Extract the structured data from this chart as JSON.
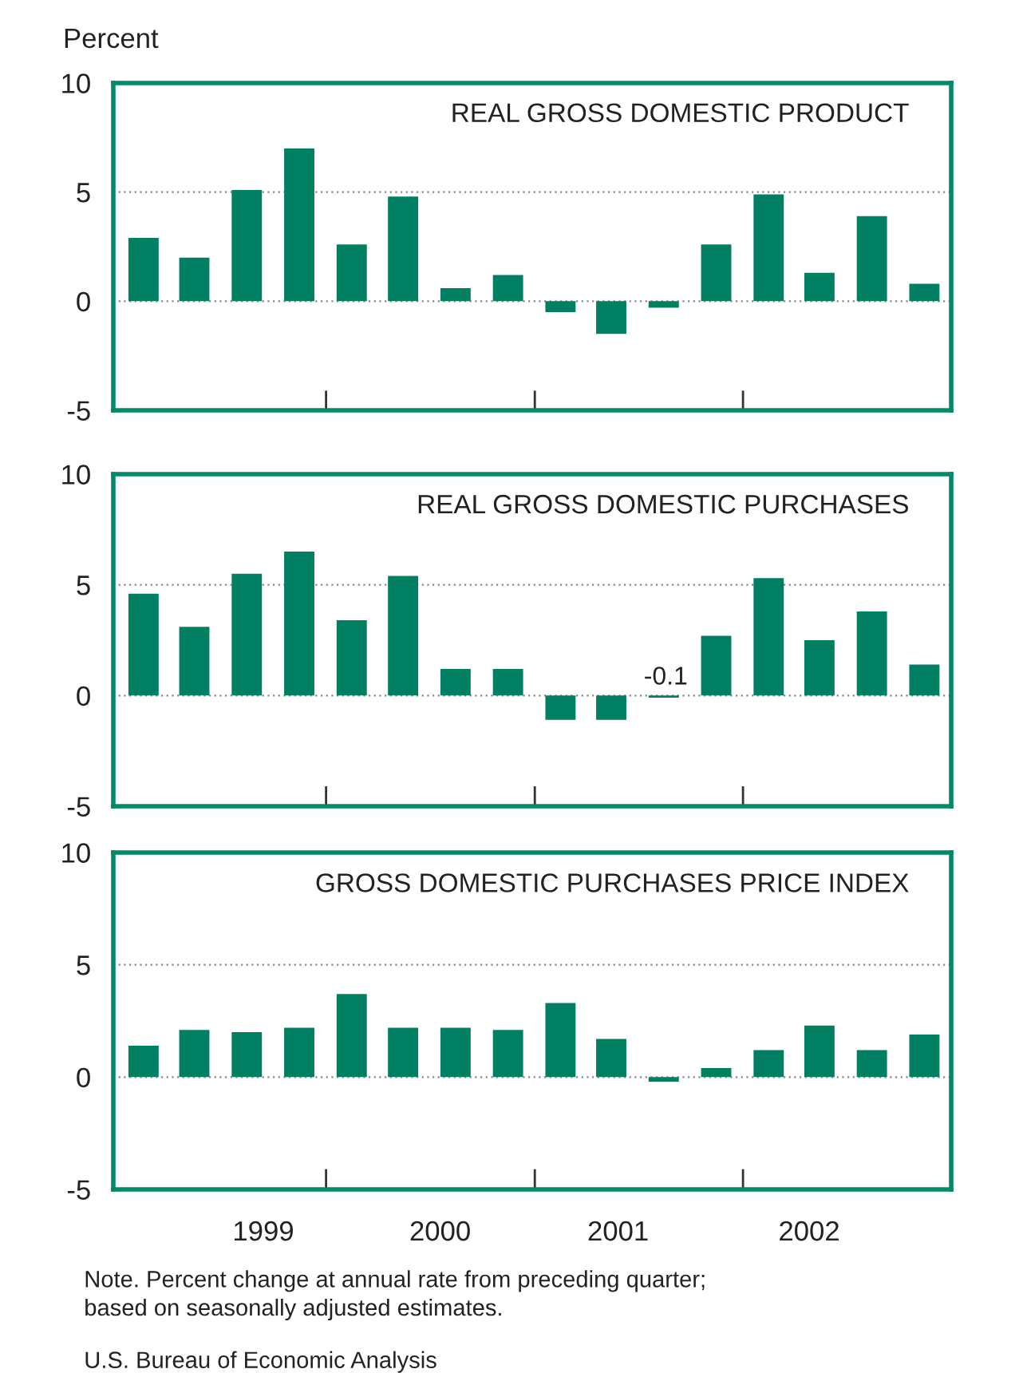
{
  "chart_data": [
    {
      "type": "bar",
      "title": "REAL GROSS DOMESTIC PRODUCT",
      "ylabel": "Percent",
      "color": "#007f62",
      "x": [
        "1999-02-15",
        "1999-05-15",
        "1999-08-15",
        "1999-11-15",
        "2000-02-15",
        "2000-05-15",
        "2000-08-15",
        "2000-11-15",
        "2001-02-15",
        "2001-05-15",
        "2001-08-15",
        "2001-11-15",
        "2002-02-15",
        "2002-05-15",
        "2002-08-15",
        "2002-11-15"
      ],
      "values": [
        2.9,
        2.0,
        5.1,
        7.0,
        2.6,
        4.8,
        0.6,
        1.2,
        -0.5,
        -1.5,
        -0.3,
        2.6,
        4.9,
        1.3,
        3.9,
        0.8
      ],
      "xlim": [
        "1998-12-24",
        "2003-01-01"
      ],
      "xticks": [
        {
          "value": "2000-01-01",
          "label": null
        },
        {
          "value": "2001-01-01",
          "label": null
        },
        {
          "value": "2002-01-01",
          "label": null
        }
      ],
      "ylim": [
        -5,
        10
      ],
      "yticks": [
        -5,
        0,
        5,
        10
      ],
      "grid": "y",
      "tick_labels": "y"
    },
    {
      "type": "bar",
      "title": "REAL GROSS DOMESTIC PURCHASES",
      "color": "#007f62",
      "x": [
        "1999-02-15",
        "1999-05-15",
        "1999-08-15",
        "1999-11-15",
        "2000-02-15",
        "2000-05-15",
        "2000-08-15",
        "2000-11-15",
        "2001-02-15",
        "2001-05-15",
        "2001-08-15",
        "2001-11-15",
        "2002-02-15",
        "2002-05-15",
        "2002-08-15",
        "2002-11-15"
      ],
      "values": [
        4.6,
        3.1,
        5.5,
        6.5,
        3.4,
        5.4,
        1.2,
        1.2,
        -1.1,
        -1.1,
        -0.1,
        2.7,
        5.3,
        2.5,
        3.8,
        1.4
      ],
      "annotations": [
        {
          "text": "-0.1",
          "x": "2001-08-15",
          "y": -0.1
        }
      ],
      "xlim": [
        "1998-12-24",
        "2003-01-01"
      ],
      "xticks": [
        {
          "value": "2000-01-01",
          "label": null
        },
        {
          "value": "2001-01-01",
          "label": null
        },
        {
          "value": "2002-01-01",
          "label": null
        }
      ],
      "ylim": [
        -5,
        10
      ],
      "yticks": [
        -5,
        0,
        5,
        10
      ],
      "grid": "y",
      "tick_labels": "y"
    },
    {
      "type": "bar",
      "title": "GROSS DOMESTIC PURCHASES PRICE INDEX",
      "color": "#007f62",
      "x": [
        "1999-02-15",
        "1999-05-15",
        "1999-08-15",
        "1999-11-15",
        "2000-02-15",
        "2000-05-15",
        "2000-08-15",
        "2000-11-15",
        "2001-02-15",
        "2001-05-15",
        "2001-08-15",
        "2001-11-15",
        "2002-02-15",
        "2002-05-15",
        "2002-08-15",
        "2002-11-15"
      ],
      "values": [
        1.4,
        2.1,
        2.0,
        2.2,
        3.7,
        2.2,
        2.2,
        2.1,
        3.3,
        1.7,
        -0.2,
        0.4,
        1.2,
        2.3,
        1.2,
        1.9
      ],
      "annotations": [
        "Note. Percent change at annual rate from preceding quarter;\nbased on seasonally adjusted estimates.",
        "U.S. Bureau of Economic Analysis"
      ],
      "xlim": [
        "1998-12-24",
        "2003-01-01"
      ],
      "xticks": [
        {
          "value": "1999-09-13",
          "label": "1999"
        },
        {
          "value": "2000-07-19",
          "label": "2000"
        },
        {
          "value": "2001-05-27",
          "label": "2001"
        },
        {
          "value": "2002-04-27",
          "label": "2002"
        }
      ],
      "ylim": [
        -5,
        10
      ],
      "yticks": [
        -5,
        0,
        5,
        10
      ],
      "grid": "y"
    }
  ]
}
